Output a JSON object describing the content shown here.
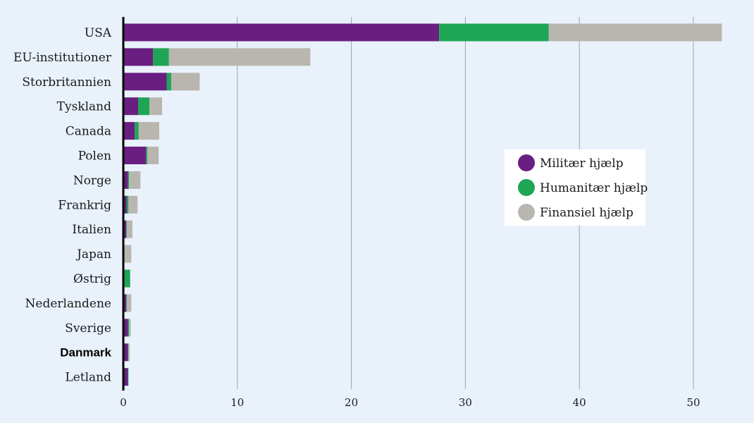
{
  "chart_data": {
    "type": "bar",
    "orientation": "horizontal",
    "stacked": true,
    "categories": [
      "USA",
      "EU-institutioner",
      "Storbritannien",
      "Tyskland",
      "Canada",
      "Polen",
      "Norge",
      "Frankrig",
      "Italien",
      "Japan",
      "Østrig",
      "Nederlandene",
      "Sverige",
      "Danmark",
      "Letland"
    ],
    "highlight_category": "Danmark",
    "series": [
      {
        "name": "Militær hjælp",
        "color": "#6a1f80",
        "values": [
          27.7,
          2.6,
          3.8,
          1.3,
          1.0,
          2.0,
          0.4,
          0.3,
          0.25,
          0.0,
          0.0,
          0.25,
          0.4,
          0.4,
          0.4
        ]
      },
      {
        "name": "Humanitær hjælp",
        "color": "#1fa556",
        "values": [
          9.6,
          1.4,
          0.4,
          1.0,
          0.35,
          0.1,
          0.1,
          0.15,
          0.05,
          0.1,
          0.6,
          0.05,
          0.1,
          0.05,
          0.05
        ]
      },
      {
        "name": "Finansiel hjælp",
        "color": "#b9b6af",
        "values": [
          15.2,
          12.4,
          2.5,
          1.1,
          1.8,
          1.0,
          1.0,
          0.8,
          0.5,
          0.6,
          0.0,
          0.4,
          0.15,
          0.1,
          0.0
        ]
      }
    ],
    "xlim": [
      0,
      54
    ],
    "xticks": [
      "0",
      "10",
      "20",
      "30",
      "40",
      "50"
    ],
    "grid": "vertical",
    "legend": "right",
    "title": "",
    "xlabel": "",
    "ylabel": ""
  }
}
